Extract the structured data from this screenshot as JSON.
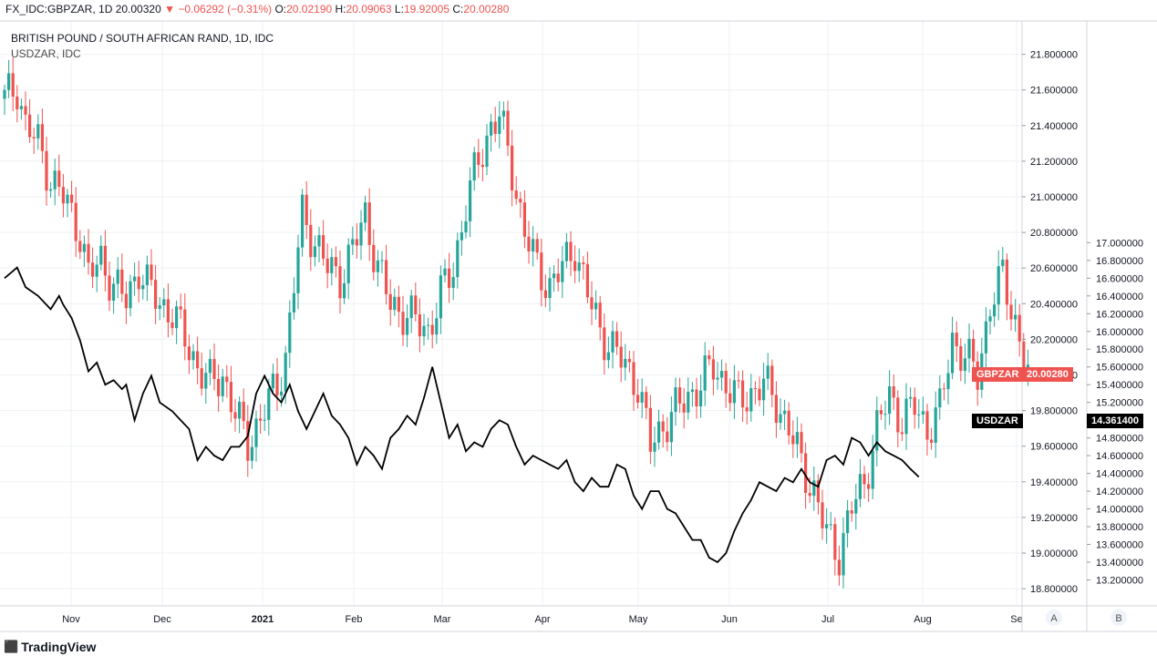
{
  "header": {
    "symbol": "FX_IDC:GBPZAR, 1D",
    "last": "20.00320",
    "change": "−0.06292 (−0.31%)",
    "o_label": "O:",
    "o": "20.02190",
    "h_label": "H:",
    "h": "20.09063",
    "l_label": "L:",
    "l": "19.92005",
    "c_label": "C:",
    "c": "20.00280"
  },
  "legend": {
    "main": "BRITISH POUND / SOUTH AFRICAN RAND, 1D, IDC",
    "overlay": "USDZAR, IDC"
  },
  "tags": {
    "gbpzar_name": "GBPZAR",
    "gbpzar_value": "20.00280",
    "usdzar_name": "USDZAR",
    "usdzar_value": "14.361400"
  },
  "scale_buttons": {
    "a": "A",
    "b": "B"
  },
  "branding": {
    "logo": "TradingView"
  },
  "colors": {
    "up": "#26a69a",
    "down": "#ef5350",
    "usd": "#000000",
    "grid": "#eef0f3",
    "border": "#d1d4dc"
  },
  "chart_data": {
    "type": "candlestick",
    "right_axis_ticks": [
      "18.800000",
      "19.000000",
      "19.200000",
      "19.400000",
      "19.600000",
      "19.800000",
      "20.000000",
      "20.200000",
      "20.400000",
      "20.600000",
      "20.800000",
      "21.000000",
      "21.200000",
      "21.400000",
      "21.600000",
      "21.800000"
    ],
    "far_axis_ticks": [
      "13.200000",
      "13.400000",
      "13.600000",
      "13.800000",
      "14.000000",
      "14.200000",
      "14.400000",
      "14.600000",
      "14.800000",
      "15.000000",
      "15.200000",
      "15.400000",
      "15.600000",
      "15.800000",
      "16.000000",
      "16.200000",
      "16.400000",
      "16.600000",
      "16.800000",
      "17.000000"
    ],
    "x_ticks": [
      "Nov",
      "Dec",
      "2021",
      "Feb",
      "Mar",
      "Apr",
      "May",
      "Jun",
      "Jul",
      "Aug",
      "Se"
    ],
    "gbpzar_close_samples": [
      [
        0,
        21.55
      ],
      [
        3,
        21.62
      ],
      [
        5,
        21.4
      ],
      [
        8,
        21.3
      ],
      [
        11,
        21.1
      ],
      [
        14,
        21.0
      ],
      [
        18,
        20.8
      ],
      [
        20,
        20.55
      ],
      [
        23,
        20.65
      ],
      [
        26,
        20.5
      ],
      [
        29,
        20.42
      ],
      [
        32,
        20.6
      ],
      [
        34,
        20.5
      ],
      [
        37,
        20.4
      ],
      [
        40,
        20.35
      ],
      [
        43,
        20.2
      ],
      [
        46,
        20.05
      ],
      [
        49,
        19.95
      ],
      [
        52,
        20.0
      ],
      [
        55,
        19.78
      ],
      [
        58,
        19.62
      ],
      [
        61,
        19.75
      ],
      [
        63,
        19.85
      ],
      [
        65,
        19.95
      ],
      [
        67,
        20.1
      ],
      [
        69,
        20.5
      ],
      [
        71,
        20.9
      ],
      [
        74,
        20.75
      ],
      [
        77,
        20.6
      ],
      [
        80,
        20.55
      ],
      [
        83,
        20.7
      ],
      [
        86,
        20.9
      ],
      [
        89,
        20.6
      ],
      [
        92,
        20.4
      ],
      [
        95,
        20.35
      ],
      [
        98,
        20.3
      ],
      [
        101,
        20.25
      ],
      [
        104,
        20.45
      ],
      [
        107,
        20.6
      ],
      [
        110,
        20.95
      ],
      [
        113,
        21.2
      ],
      [
        116,
        21.4
      ],
      [
        118,
        21.45
      ],
      [
        121,
        21.15
      ],
      [
        124,
        20.8
      ],
      [
        127,
        20.6
      ],
      [
        130,
        20.5
      ],
      [
        133,
        20.6
      ],
      [
        136,
        20.72
      ],
      [
        139,
        20.45
      ],
      [
        142,
        20.25
      ],
      [
        145,
        20.15
      ],
      [
        148,
        20.05
      ],
      [
        151,
        19.95
      ],
      [
        154,
        19.6
      ],
      [
        157,
        19.72
      ],
      [
        160,
        19.8
      ],
      [
        163,
        19.88
      ],
      [
        166,
        19.95
      ],
      [
        169,
        20.05
      ],
      [
        172,
        19.95
      ],
      [
        175,
        19.85
      ],
      [
        178,
        19.9
      ],
      [
        181,
        19.95
      ],
      [
        184,
        19.85
      ],
      [
        187,
        19.7
      ],
      [
        190,
        19.5
      ],
      [
        193,
        19.35
      ],
      [
        196,
        19.1
      ],
      [
        199,
        19.0
      ],
      [
        202,
        19.25
      ],
      [
        205,
        19.4
      ],
      [
        208,
        19.7
      ],
      [
        211,
        19.88
      ],
      [
        214,
        19.75
      ],
      [
        217,
        19.82
      ],
      [
        220,
        19.7
      ],
      [
        223,
        19.8
      ],
      [
        226,
        20.2
      ],
      [
        229,
        20.1
      ],
      [
        232,
        20.0
      ],
      [
        235,
        20.4
      ],
      [
        238,
        20.55
      ],
      [
        241,
        20.3
      ],
      [
        244,
        20.0
      ]
    ],
    "usdzar_samples": [
      [
        0,
        16.6
      ],
      [
        3,
        16.72
      ],
      [
        5,
        16.5
      ],
      [
        8,
        16.4
      ],
      [
        11,
        16.25
      ],
      [
        13,
        16.4
      ],
      [
        14,
        16.3
      ],
      [
        16,
        16.15
      ],
      [
        18,
        15.9
      ],
      [
        20,
        15.55
      ],
      [
        22,
        15.65
      ],
      [
        24,
        15.4
      ],
      [
        26,
        15.45
      ],
      [
        28,
        15.35
      ],
      [
        29,
        15.4
      ],
      [
        31,
        15.0
      ],
      [
        33,
        15.3
      ],
      [
        35,
        15.5
      ],
      [
        37,
        15.2
      ],
      [
        40,
        15.1
      ],
      [
        42,
        15.0
      ],
      [
        44,
        14.9
      ],
      [
        46,
        14.55
      ],
      [
        48,
        14.7
      ],
      [
        50,
        14.6
      ],
      [
        52,
        14.55
      ],
      [
        54,
        14.7
      ],
      [
        56,
        14.7
      ],
      [
        58,
        14.82
      ],
      [
        60,
        15.3
      ],
      [
        62,
        15.5
      ],
      [
        64,
        15.3
      ],
      [
        66,
        15.2
      ],
      [
        68,
        15.4
      ],
      [
        70,
        15.1
      ],
      [
        72,
        14.9
      ],
      [
        74,
        15.1
      ],
      [
        76,
        15.3
      ],
      [
        78,
        15.05
      ],
      [
        80,
        14.95
      ],
      [
        82,
        14.8
      ],
      [
        84,
        14.5
      ],
      [
        86,
        14.7
      ],
      [
        88,
        14.6
      ],
      [
        90,
        14.45
      ],
      [
        92,
        14.8
      ],
      [
        94,
        14.9
      ],
      [
        96,
        15.05
      ],
      [
        98,
        14.95
      ],
      [
        100,
        15.25
      ],
      [
        102,
        15.6
      ],
      [
        104,
        15.2
      ],
      [
        106,
        14.8
      ],
      [
        108,
        14.95
      ],
      [
        110,
        14.65
      ],
      [
        112,
        14.75
      ],
      [
        114,
        14.7
      ],
      [
        116,
        14.9
      ],
      [
        118,
        15.0
      ],
      [
        120,
        14.95
      ],
      [
        122,
        14.7
      ],
      [
        124,
        14.5
      ],
      [
        126,
        14.6
      ],
      [
        128,
        14.55
      ],
      [
        130,
        14.5
      ],
      [
        132,
        14.45
      ],
      [
        134,
        14.55
      ],
      [
        136,
        14.3
      ],
      [
        138,
        14.2
      ],
      [
        140,
        14.35
      ],
      [
        142,
        14.25
      ],
      [
        144,
        14.25
      ],
      [
        146,
        14.5
      ],
      [
        148,
        14.45
      ],
      [
        150,
        14.15
      ],
      [
        152,
        14.0
      ],
      [
        154,
        14.2
      ],
      [
        156,
        14.2
      ],
      [
        158,
        14.0
      ],
      [
        160,
        13.95
      ],
      [
        162,
        13.8
      ],
      [
        164,
        13.65
      ],
      [
        166,
        13.65
      ],
      [
        168,
        13.45
      ],
      [
        170,
        13.4
      ],
      [
        172,
        13.5
      ],
      [
        174,
        13.75
      ],
      [
        176,
        13.95
      ],
      [
        178,
        14.1
      ],
      [
        180,
        14.3
      ],
      [
        182,
        14.25
      ],
      [
        184,
        14.2
      ],
      [
        186,
        14.35
      ],
      [
        188,
        14.3
      ],
      [
        190,
        14.45
      ],
      [
        192,
        14.3
      ],
      [
        194,
        14.25
      ],
      [
        196,
        14.55
      ],
      [
        198,
        14.6
      ],
      [
        200,
        14.5
      ],
      [
        202,
        14.8
      ],
      [
        204,
        14.75
      ],
      [
        206,
        14.6
      ],
      [
        208,
        14.75
      ],
      [
        210,
        14.65
      ],
      [
        212,
        14.6
      ],
      [
        214,
        14.55
      ],
      [
        216,
        14.45
      ],
      [
        218,
        14.36
      ]
    ]
  }
}
